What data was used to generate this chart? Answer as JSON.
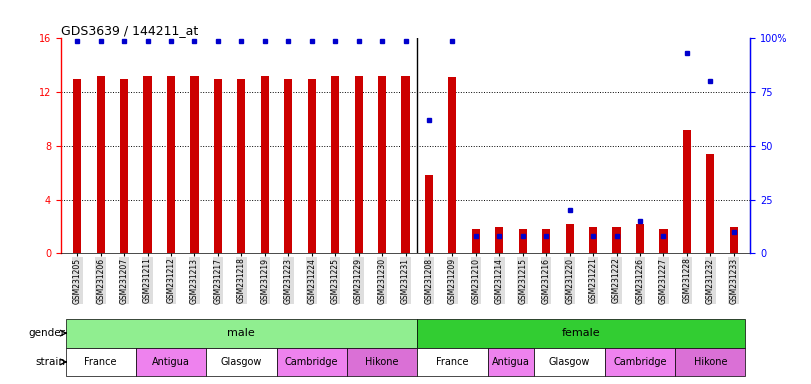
{
  "title": "GDS3639 / 144211_at",
  "samples": [
    "GSM231205",
    "GSM231206",
    "GSM231207",
    "GSM231211",
    "GSM231212",
    "GSM231213",
    "GSM231217",
    "GSM231218",
    "GSM231219",
    "GSM231223",
    "GSM231224",
    "GSM231225",
    "GSM231229",
    "GSM231230",
    "GSM231231",
    "GSM231208",
    "GSM231209",
    "GSM231210",
    "GSM231214",
    "GSM231215",
    "GSM231216",
    "GSM231220",
    "GSM231221",
    "GSM231222",
    "GSM231226",
    "GSM231227",
    "GSM231228",
    "GSM231232",
    "GSM231233"
  ],
  "red_values": [
    13.0,
    13.2,
    13.0,
    13.2,
    13.2,
    13.2,
    13.0,
    13.0,
    13.2,
    13.0,
    13.0,
    13.2,
    13.2,
    13.2,
    13.2,
    5.8,
    13.1,
    1.8,
    2.0,
    1.8,
    1.8,
    2.2,
    2.0,
    2.0,
    2.2,
    1.8,
    9.2,
    7.4,
    2.0
  ],
  "blue_values_pct": [
    99,
    99,
    99,
    99,
    99,
    99,
    99,
    99,
    99,
    99,
    99,
    99,
    99,
    99,
    99,
    62,
    99,
    8,
    8,
    8,
    8,
    20,
    8,
    8,
    15,
    8,
    93,
    80,
    10
  ],
  "ylim_left": [
    0,
    16
  ],
  "ylim_right": [
    0,
    100
  ],
  "yticks_left": [
    0,
    4,
    8,
    12,
    16
  ],
  "yticks_right": [
    0,
    25,
    50,
    75,
    100
  ],
  "bar_width": 0.35,
  "red_color": "#cc0000",
  "blue_color": "#0000cc",
  "male_color": "#90EE90",
  "female_color": "#32CD32",
  "strain_colors": [
    "#ffffff",
    "#ee82ee",
    "#ffffff",
    "#ee82ee",
    "#da70d6"
  ],
  "strain_labels": [
    "France",
    "Antigua",
    "Glasgow",
    "Cambridge",
    "Hikone"
  ],
  "male_strain_counts": [
    3,
    3,
    3,
    3,
    3
  ],
  "female_strain_counts": [
    3,
    2,
    3,
    3,
    3
  ],
  "num_male": 15,
  "num_female": 14
}
